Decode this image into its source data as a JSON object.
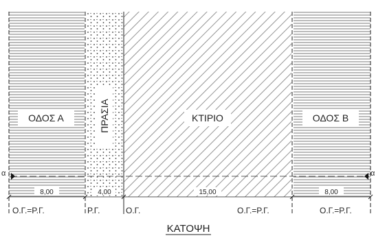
{
  "labels": {
    "road_a": "ΟΔΟΣ Α",
    "garden": "ΠΡΑΣΙΑ",
    "building": "ΚΤΙΡΙΟ",
    "road_b": "ΟΔΟΣ Β",
    "section_mark_left": "α",
    "section_mark_right": "α",
    "title": "ΚΑΤΟΨΗ"
  },
  "dimensions": {
    "road_a": "8,00",
    "garden": "4,00",
    "building": "15,00",
    "road_b": "8,00"
  },
  "line_labels": {
    "left": "Ο.Γ.=Ρ.Γ.",
    "garden_left": "Ρ.Γ.",
    "building_left": "Ο.Γ.",
    "building_right": "Ο.Γ.=Ρ.Γ.",
    "right": "Ο.Γ.=Ρ.Γ."
  },
  "colors": {
    "line": "#222222",
    "hatch": "#555555",
    "background": "#ffffff"
  }
}
